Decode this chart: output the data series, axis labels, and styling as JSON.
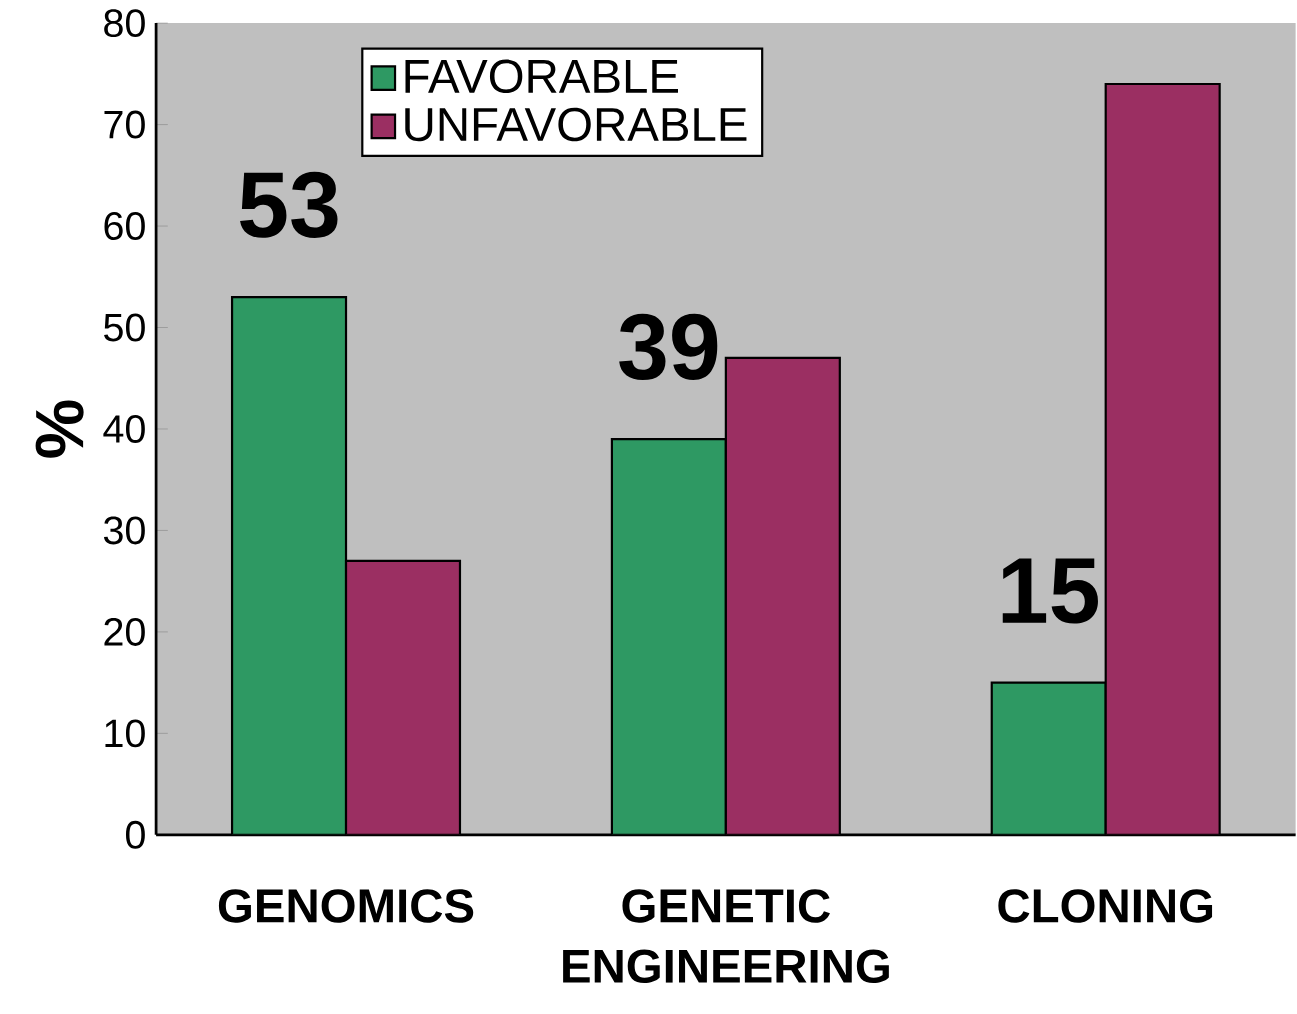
{
  "chart_data": {
    "type": "bar",
    "ylabel": "%",
    "categories": [
      "GENOMICS",
      "GENETIC ENGINEERING",
      "CLONING"
    ],
    "series": [
      {
        "name": "FAVORABLE",
        "color": "#2e9963",
        "values": [
          53,
          39,
          15
        ],
        "value_labels": [
          "53",
          "39",
          "15"
        ]
      },
      {
        "name": "UNFAVORABLE",
        "color": "#9b2f62",
        "values": [
          27,
          47,
          74
        ]
      }
    ],
    "ylim": [
      0,
      80
    ],
    "yticks": [
      0,
      10,
      20,
      30,
      40,
      50,
      60,
      70,
      80
    ],
    "legend": "top left",
    "grid": false
  }
}
